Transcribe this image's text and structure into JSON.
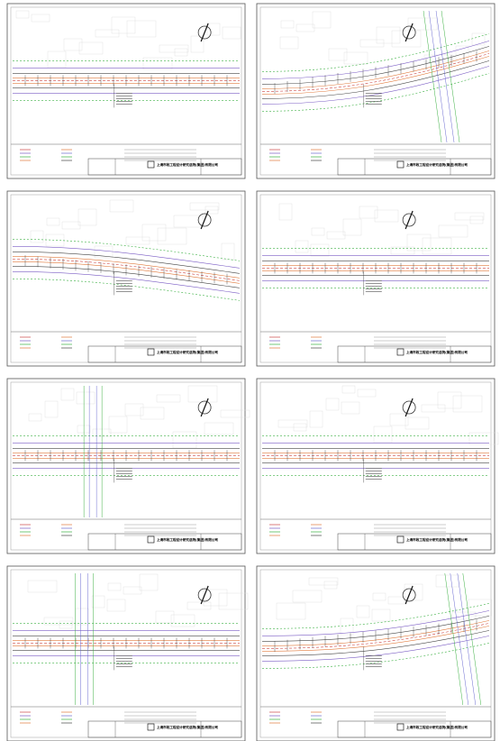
{
  "sheets": [
    {
      "company": "上海市政工程设计研究总院(集团)有限公司"
    },
    {
      "company": "上海市政工程设计研究总院(集团)有限公司"
    },
    {
      "company": "上海市政工程设计研究总院(集团)有限公司"
    },
    {
      "company": "上海市政工程设计研究总院(集团)有限公司"
    },
    {
      "company": "上海市政工程设计研究总院(集团)有限公司"
    },
    {
      "company": "上海市政工程设计研究总院(集团)有限公司"
    },
    {
      "company": "上海市政工程设计研究总院(集团)有限公司"
    },
    {
      "company": "上海市政工程设计研究总院(集团)有限公司"
    }
  ]
}
